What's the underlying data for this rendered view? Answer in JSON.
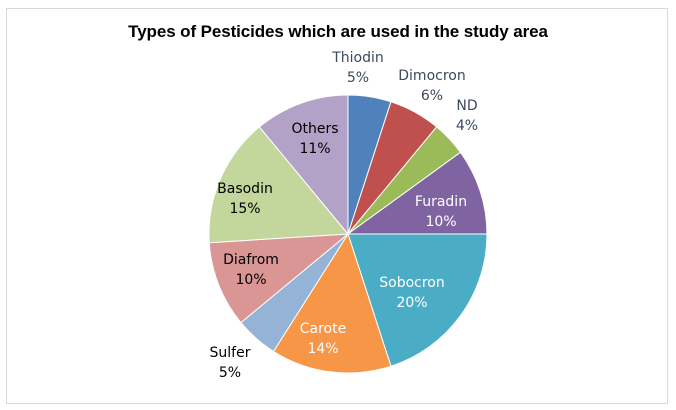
{
  "chart_data": {
    "type": "pie",
    "title": "Types of Pesticides which are used in the study area",
    "slices": [
      {
        "label": "Thiodin",
        "value": 5,
        "display": "5%",
        "color": "#4f81bd"
      },
      {
        "label": "Dimocron",
        "value": 6,
        "display": "6%",
        "color": "#c0504d"
      },
      {
        "label": "ND",
        "value": 4,
        "display": "4%",
        "color": "#9bbb59"
      },
      {
        "label": "Furadin",
        "value": 10,
        "display": "10%",
        "color": "#8064a2"
      },
      {
        "label": "Sobocron",
        "value": 20,
        "display": "20%",
        "color": "#4bacc6"
      },
      {
        "label": "Carote",
        "value": 14,
        "display": "14%",
        "color": "#f79646"
      },
      {
        "label": "Sulfer",
        "value": 5,
        "display": "5%",
        "color": "#95b3d7"
      },
      {
        "label": "Diafrom",
        "value": 10,
        "display": "10%",
        "color": "#d99694"
      },
      {
        "label": "Basodin",
        "value": 15,
        "display": "15%",
        "color": "#c3d69b"
      },
      {
        "label": "Others",
        "value": 11,
        "display": "11%",
        "color": "#b2a2c7"
      }
    ],
    "start": "12 o'clock",
    "direction": "clockwise",
    "legend": "none"
  }
}
